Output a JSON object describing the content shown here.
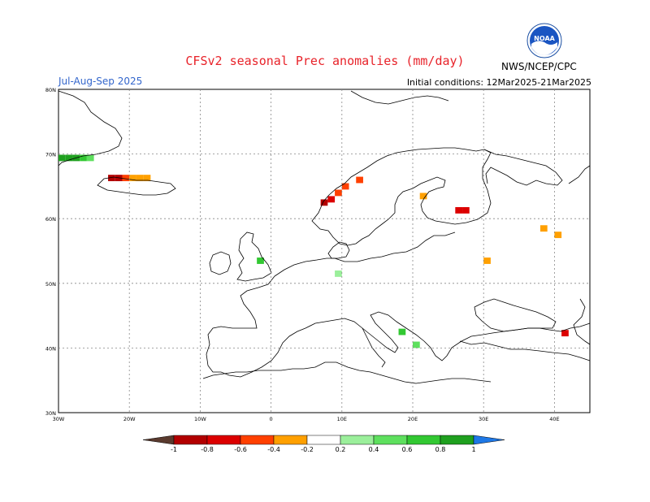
{
  "title": "CFSv2 seasonal Prec anomalies (mm/day)",
  "season": "Jul-Aug-Sep 2025",
  "initial_conditions": "Initial conditions: 12Mar2025-21Mar2025",
  "org": "NWS/NCEP/CPC",
  "logo_text": "NOAA",
  "lat_labels": [
    "80N",
    "70N",
    "60N",
    "50N",
    "40N",
    "30N"
  ],
  "lon_labels": [
    "30W",
    "20W",
    "10W",
    "0",
    "10E",
    "20E",
    "30E",
    "40E"
  ],
  "colorbar_labels": [
    "-1",
    "-0.8",
    "-0.6",
    "-0.4",
    "-0.2",
    "0.2",
    "0.4",
    "0.6",
    "0.8",
    "1"
  ],
  "colors": {
    "title": "#e8232a",
    "season": "#3366cc",
    "dry_extreme": "#5a3a2e",
    "dry_strong": "#b20000",
    "dry_moderate": "#dc0000",
    "dry_light": "#ff4000",
    "dry_weak": "#ffa000",
    "wet_weak": "#9bef9b",
    "wet_light": "#5ee05e",
    "wet_moderate": "#32c832",
    "wet_strong": "#1fa01f",
    "wet_extreme": "#1e78e6"
  },
  "chart_data": {
    "type": "heatmap",
    "variable": "Precipitation anomaly",
    "units": "mm/day",
    "lon_range": [
      -30,
      45
    ],
    "lat_range": [
      30,
      80
    ],
    "levels": [
      -1,
      -0.8,
      -0.6,
      -0.4,
      -0.2,
      0.2,
      0.4,
      0.6,
      0.8,
      1
    ],
    "cells": [
      {
        "lon": -30,
        "lat": 68.9,
        "value": 0.8
      },
      {
        "lon": -29,
        "lat": 68.9,
        "value": 0.8
      },
      {
        "lon": -28,
        "lat": 68.9,
        "value": 0.8
      },
      {
        "lon": -27,
        "lat": 68.9,
        "value": 0.6
      },
      {
        "lon": -26,
        "lat": 68.9,
        "value": 0.4
      },
      {
        "lon": -23,
        "lat": 65.8,
        "value": -0.8
      },
      {
        "lon": -22,
        "lat": 65.8,
        "value": -0.8
      },
      {
        "lon": -21,
        "lat": 65.8,
        "value": -0.4
      },
      {
        "lon": -20,
        "lat": 65.8,
        "value": -0.2
      },
      {
        "lon": -19,
        "lat": 65.8,
        "value": -0.2
      },
      {
        "lon": -18,
        "lat": 65.8,
        "value": -0.2
      },
      {
        "lon": 8,
        "lat": 62.5,
        "value": -0.6
      },
      {
        "lon": 7,
        "lat": 62,
        "value": -0.8
      },
      {
        "lon": 9,
        "lat": 63.5,
        "value": -0.4
      },
      {
        "lon": 10,
        "lat": 64.5,
        "value": -0.4
      },
      {
        "lon": 12,
        "lat": 65.5,
        "value": -0.4
      },
      {
        "lon": 21,
        "lat": 63,
        "value": -0.2
      },
      {
        "lon": 26,
        "lat": 60.8,
        "value": -0.6
      },
      {
        "lon": 27,
        "lat": 60.8,
        "value": -0.6
      },
      {
        "lon": 38,
        "lat": 58,
        "value": -0.2
      },
      {
        "lon": 40,
        "lat": 57,
        "value": -0.2
      },
      {
        "lon": 30,
        "lat": 53,
        "value": -0.2
      },
      {
        "lon": 41,
        "lat": 41.8,
        "value": -0.6
      },
      {
        "lon": -2,
        "lat": 53,
        "value": 0.6
      },
      {
        "lon": 9,
        "lat": 51,
        "value": 0.2
      },
      {
        "lon": 18,
        "lat": 42,
        "value": 0.6
      },
      {
        "lon": 20,
        "lat": 40,
        "value": 0.4
      }
    ]
  }
}
